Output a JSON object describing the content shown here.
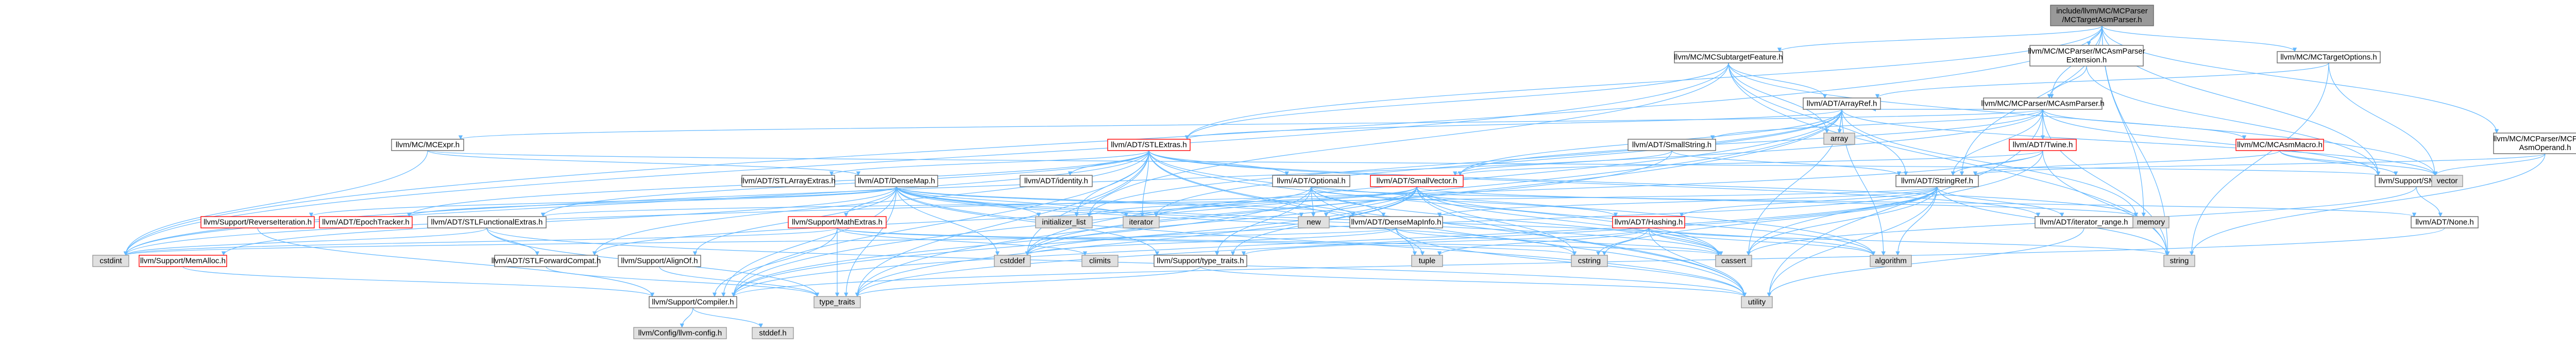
{
  "diagram": {
    "title": "include/llvm/MC/MCParser/MCTargetAsmParser.h include dependency graph",
    "colors": {
      "edge": "#63b8ff",
      "root_fill": "#999999",
      "root_stroke": "#666666",
      "file_fill": "#ffffff",
      "file_stroke": "#666666",
      "redlined_stroke": "#ff0000",
      "system_fill": "#e0e0e0",
      "system_stroke": "#999999"
    },
    "nodes": [
      {
        "id": "root",
        "lines": [
          "include/llvm/MC/MCParser",
          "/MCTargetAsmParser.h"
        ],
        "kind": "root"
      },
      {
        "id": "subtarget",
        "lines": [
          "llvm/MC/MCSubtargetFeature.h"
        ],
        "kind": "file"
      },
      {
        "id": "asmext",
        "lines": [
          "llvm/MC/MCParser/MCAsmParser",
          "Extension.h"
        ],
        "kind": "file"
      },
      {
        "id": "targetopts",
        "lines": [
          "llvm/MC/MCTargetOptions.h"
        ],
        "kind": "file"
      },
      {
        "id": "arrayref",
        "lines": [
          "llvm/ADT/ArrayRef.h"
        ],
        "kind": "file"
      },
      {
        "id": "asmparser",
        "lines": [
          "llvm/MC/MCParser/MCAsmParser.h"
        ],
        "kind": "file"
      },
      {
        "id": "mcexpr",
        "lines": [
          "llvm/MC/MCExpr.h"
        ],
        "kind": "file"
      },
      {
        "id": "stlextras",
        "lines": [
          "llvm/ADT/STLExtras.h"
        ],
        "kind": "redlined"
      },
      {
        "id": "smallstring",
        "lines": [
          "llvm/ADT/SmallString.h"
        ],
        "kind": "file"
      },
      {
        "id": "twine",
        "lines": [
          "llvm/ADT/Twine.h"
        ],
        "kind": "redlined"
      },
      {
        "id": "asmmacro",
        "lines": [
          "llvm/MC/MCAsmMacro.h"
        ],
        "kind": "redlined"
      },
      {
        "id": "parsedop",
        "lines": [
          "llvm/MC/MCParser/MCParsed",
          "AsmOperand.h"
        ],
        "kind": "file"
      },
      {
        "id": "identity",
        "lines": [
          "llvm/ADT/identity.h"
        ],
        "kind": "file"
      },
      {
        "id": "stlarray",
        "lines": [
          "llvm/ADT/STLArrayExtras.h"
        ],
        "kind": "file"
      },
      {
        "id": "densemap",
        "lines": [
          "llvm/ADT/DenseMap.h"
        ],
        "kind": "file"
      },
      {
        "id": "optional",
        "lines": [
          "llvm/ADT/Optional.h"
        ],
        "kind": "file"
      },
      {
        "id": "smallvector",
        "lines": [
          "llvm/ADT/SmallVector.h"
        ],
        "kind": "redlined"
      },
      {
        "id": "stringref",
        "lines": [
          "llvm/ADT/StringRef.h"
        ],
        "kind": "file"
      },
      {
        "id": "smloc",
        "lines": [
          "llvm/Support/SMLoc.h"
        ],
        "kind": "file"
      },
      {
        "id": "array",
        "lines": [
          "array"
        ],
        "kind": "system"
      },
      {
        "id": "vector",
        "lines": [
          "vector"
        ],
        "kind": "system"
      },
      {
        "id": "revit",
        "lines": [
          "llvm/Support/ReverseIteration.h"
        ],
        "kind": "redlined"
      },
      {
        "id": "epoch",
        "lines": [
          "llvm/ADT/EpochTracker.h"
        ],
        "kind": "redlined"
      },
      {
        "id": "stlfunc",
        "lines": [
          "llvm/ADT/STLFunctionalExtras.h"
        ],
        "kind": "file"
      },
      {
        "id": "mathextras",
        "lines": [
          "llvm/Support/MathExtras.h"
        ],
        "kind": "redlined"
      },
      {
        "id": "new",
        "lines": [
          "new"
        ],
        "kind": "system"
      },
      {
        "id": "iterator",
        "lines": [
          "iterator"
        ],
        "kind": "system"
      },
      {
        "id": "initlist",
        "lines": [
          "initializer_list"
        ],
        "kind": "system"
      },
      {
        "id": "densemapinfo",
        "lines": [
          "llvm/ADT/DenseMapInfo.h"
        ],
        "kind": "file"
      },
      {
        "id": "hashing",
        "lines": [
          "llvm/ADT/Hashing.h"
        ],
        "kind": "redlined"
      },
      {
        "id": "itrange",
        "lines": [
          "llvm/ADT/iterator_range.h"
        ],
        "kind": "file"
      },
      {
        "id": "memory",
        "lines": [
          "memory"
        ],
        "kind": "system"
      },
      {
        "id": "none",
        "lines": [
          "llvm/ADT/None.h"
        ],
        "kind": "file"
      },
      {
        "id": "cstdint",
        "lines": [
          "cstdint"
        ],
        "kind": "system"
      },
      {
        "id": "memalloc",
        "lines": [
          "llvm/Support/MemAlloc.h"
        ],
        "kind": "redlined"
      },
      {
        "id": "stlforward",
        "lines": [
          "llvm/ADT/STLForwardCompat.h"
        ],
        "kind": "file"
      },
      {
        "id": "alignof",
        "lines": [
          "llvm/Support/AlignOf.h"
        ],
        "kind": "file"
      },
      {
        "id": "cstddef",
        "lines": [
          "cstddef"
        ],
        "kind": "system"
      },
      {
        "id": "climits",
        "lines": [
          "climits"
        ],
        "kind": "system"
      },
      {
        "id": "typetraitsh",
        "lines": [
          "llvm/Support/type_traits.h"
        ],
        "kind": "file"
      },
      {
        "id": "tuple",
        "lines": [
          "tuple"
        ],
        "kind": "system"
      },
      {
        "id": "cstring",
        "lines": [
          "cstring"
        ],
        "kind": "system"
      },
      {
        "id": "cassert",
        "lines": [
          "cassert"
        ],
        "kind": "system"
      },
      {
        "id": "algorithm",
        "lines": [
          "algorithm"
        ],
        "kind": "system"
      },
      {
        "id": "string",
        "lines": [
          "string"
        ],
        "kind": "system"
      },
      {
        "id": "compiler",
        "lines": [
          "llvm/Support/Compiler.h"
        ],
        "kind": "file"
      },
      {
        "id": "typetraits",
        "lines": [
          "type_traits"
        ],
        "kind": "system"
      },
      {
        "id": "utility",
        "lines": [
          "utility"
        ],
        "kind": "system"
      },
      {
        "id": "config",
        "lines": [
          "llvm/Config/llvm-config.h"
        ],
        "kind": "system"
      },
      {
        "id": "stddef",
        "lines": [
          "stddef.h"
        ],
        "kind": "system"
      }
    ]
  }
}
